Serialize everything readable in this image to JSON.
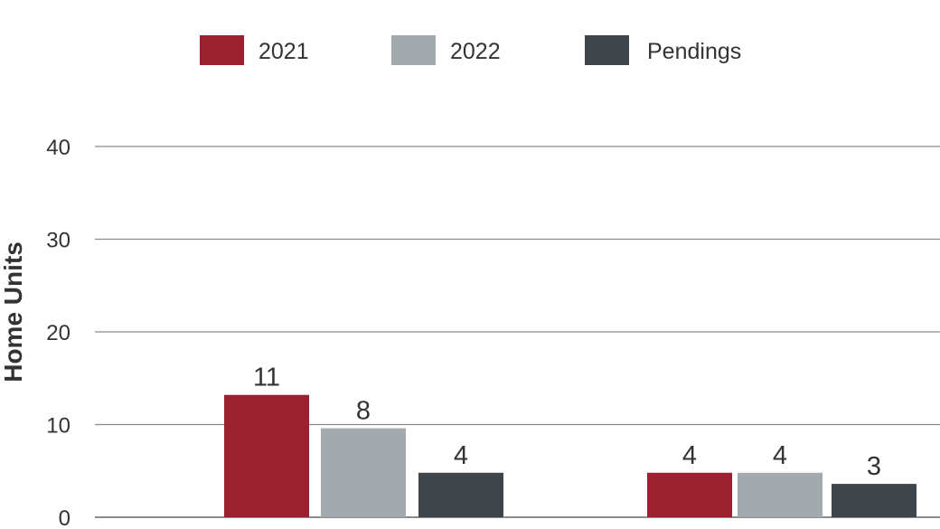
{
  "chart_data": {
    "type": "bar",
    "categories": [
      "",
      ""
    ],
    "series": [
      {
        "name": "2021",
        "values": [
          11,
          4
        ],
        "color": "#9b2030"
      },
      {
        "name": "2022",
        "values": [
          8,
          4
        ],
        "color": "#a2aaae"
      },
      {
        "name": "Pendings",
        "values": [
          4,
          3
        ],
        "color": "#3e464c"
      }
    ],
    "ylabel": "Home Units",
    "xlabel": "",
    "ylim": [
      0,
      40
    ],
    "yticks": [
      0,
      10,
      20,
      30,
      40
    ],
    "grid": true,
    "legend_position": "top"
  }
}
